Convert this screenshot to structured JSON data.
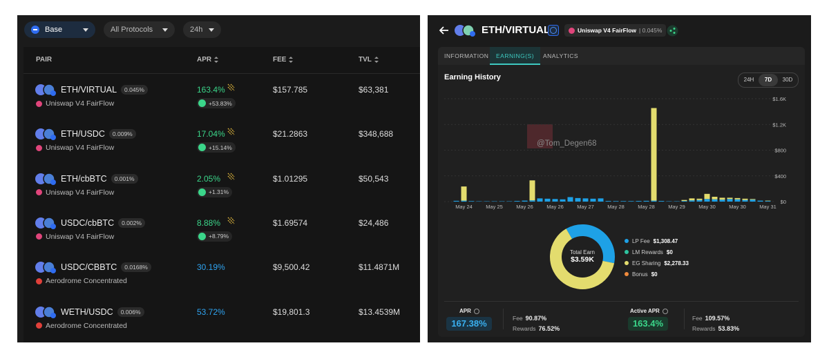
{
  "filters": {
    "chain": "Base",
    "protocol": "All Protocols",
    "period": "24h"
  },
  "table": {
    "headers": [
      "PAIR",
      "APR",
      "FEE",
      "TVL"
    ],
    "rows": [
      {
        "pair": "ETH/VIRTUAL",
        "fee_tier": "0.045%",
        "protocol": "Uniswap V4 FairFlow",
        "protocol_icon_color": "#e0457b",
        "apr": "163.4%",
        "apr_color": "#3bd68a",
        "bonus": "+53.83%",
        "fee": "$157.785",
        "tvl": "$63,381"
      },
      {
        "pair": "ETH/USDC",
        "fee_tier": "0.009%",
        "protocol": "Uniswap V4 FairFlow",
        "protocol_icon_color": "#e0457b",
        "apr": "17.04%",
        "apr_color": "#3bd68a",
        "bonus": "+15.14%",
        "fee": "$21.2863",
        "tvl": "$348,688"
      },
      {
        "pair": "ETH/cbBTC",
        "fee_tier": "0.001%",
        "protocol": "Uniswap V4 FairFlow",
        "protocol_icon_color": "#e0457b",
        "apr": "2.05%",
        "apr_color": "#3bd68a",
        "bonus": "+1.31%",
        "fee": "$1.01295",
        "tvl": "$50,543"
      },
      {
        "pair": "USDC/cbBTC",
        "fee_tier": "0.002%",
        "protocol": "Uniswap V4 FairFlow",
        "protocol_icon_color": "#e0457b",
        "apr": "8.88%",
        "apr_color": "#3bd68a",
        "bonus": "+8.79%",
        "fee": "$1.69574",
        "tvl": "$24,486"
      },
      {
        "pair": "USDC/CBBTC",
        "fee_tier": "0.0168%",
        "protocol": "Aerodrome Concentrated",
        "protocol_icon_color": "#e0403a",
        "apr": "30.19%",
        "apr_color": "#2fa3f0",
        "fee": "$9,500.42",
        "tvl": "$11.4871M"
      },
      {
        "pair": "WETH/USDC",
        "fee_tier": "0.006%",
        "protocol": "Aerodrome Concentrated",
        "protocol_icon_color": "#e0403a",
        "apr": "53.72%",
        "apr_color": "#2fa3f0",
        "fee": "$19,801.3",
        "tvl": "$13.4539M"
      }
    ]
  },
  "detail": {
    "title": "ETH/VIRTUAL",
    "protocol": "Uniswap V4 FairFlow",
    "fee_tier": "| 0.045%",
    "tabs": [
      "INFORMATION",
      "EARNING(S)",
      "ANALYTICS"
    ],
    "section_title": "Earning History",
    "ranges": [
      "24H",
      "7D",
      "30D"
    ],
    "watermark": "@Tom_Degen68"
  },
  "chart_data": [
    {
      "type": "bar",
      "stacked": true,
      "grid": true,
      "categories": [
        null,
        "May 24",
        null,
        null,
        null,
        "May 25",
        null,
        null,
        null,
        "May 26",
        null,
        null,
        null,
        "May 26",
        null,
        null,
        null,
        "May 27",
        null,
        null,
        null,
        "May 28",
        null,
        null,
        null,
        "May 28",
        null,
        null,
        null,
        "May 29",
        null,
        null,
        null,
        "May 30",
        null,
        null,
        null,
        "May 30",
        null,
        null,
        null,
        "May 31"
      ],
      "series": [
        {
          "color": "#1ea1e6",
          "values": [
            12,
            15,
            8,
            5,
            5,
            5,
            5,
            5,
            10,
            15,
            20,
            50,
            45,
            40,
            35,
            70,
            55,
            50,
            45,
            50,
            10,
            8,
            8,
            8,
            10,
            12,
            15,
            10,
            5,
            5,
            10,
            20,
            25,
            40,
            35,
            30,
            40,
            35,
            25,
            30,
            15,
            10
          ]
        },
        {
          "color": "#e3dc6e",
          "values": [
            0,
            220,
            0,
            0,
            0,
            0,
            0,
            0,
            0,
            0,
            310,
            0,
            0,
            0,
            0,
            0,
            0,
            0,
            0,
            0,
            0,
            0,
            0,
            0,
            0,
            0,
            1440,
            0,
            0,
            0,
            15,
            30,
            20,
            80,
            40,
            30,
            20,
            20,
            20,
            10,
            0,
            5
          ]
        }
      ],
      "ylim": [
        0,
        1600
      ],
      "yticks": [
        {
          "value": 0,
          "label": "$0"
        },
        {
          "value": 400,
          "label": "$400"
        },
        {
          "value": 800,
          "label": "$800"
        },
        {
          "value": 1200,
          "label": "$1.2K"
        },
        {
          "value": 1600,
          "label": "$1.6K"
        }
      ]
    },
    {
      "type": "donut",
      "center_label": "Total Earn",
      "center_value": "$3.59K",
      "categories": [
        "LP Fee",
        "LM Rewards",
        "EG Sharing",
        "Bonus"
      ],
      "values": [
        1308.47,
        0,
        2278.33,
        0
      ],
      "value_labels": [
        "$1,308.47",
        "$0",
        "$2,278.33",
        "$0"
      ],
      "colors": [
        "#1ea1e6",
        "#2ec4a0",
        "#e3dc6e",
        "#f08a3c"
      ]
    }
  ],
  "stats": {
    "apr_label": "APR",
    "apr": "167.38%",
    "fee_label": "Fee",
    "fee": "90.87%",
    "rewards_label": "Rewards",
    "rewards": "76.52%",
    "active_apr_label": "Active APR",
    "active_apr": "163.4%",
    "active_fee_label": "Fee",
    "active_fee": "109.57%",
    "active_rewards_label": "Rewards",
    "active_rewards": "53.83%"
  }
}
